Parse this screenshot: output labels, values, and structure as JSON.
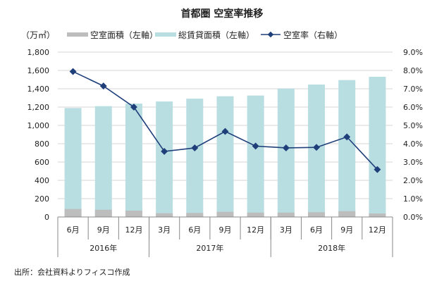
{
  "chart_data": {
    "type": "bar+line",
    "title": "首都圏  空室率推移",
    "y_left_unit": "（万㎡）",
    "ylim_left": [
      0,
      1800
    ],
    "ylim_right": [
      0,
      9
    ],
    "yticks_left": [
      "0",
      "200",
      "400",
      "600",
      "800",
      "1,000",
      "1,200",
      "1,400",
      "1,600",
      "1,800"
    ],
    "yticks_right": [
      "0.0%",
      "1.0%",
      "2.0%",
      "3.0%",
      "4.0%",
      "5.0%",
      "6.0%",
      "7.0%",
      "8.0%",
      "9.0%"
    ],
    "grid": true,
    "legend_position": "top",
    "categories": [
      "6月",
      "9月",
      "12月",
      "3月",
      "6月",
      "9月",
      "12月",
      "3月",
      "6月",
      "9月",
      "12月"
    ],
    "year_groups": [
      {
        "label": "2016年",
        "count": 3
      },
      {
        "label": "2017年",
        "count": 4
      },
      {
        "label": "2018年",
        "count": 4
      }
    ],
    "series": [
      {
        "name": "空室面積（左軸）",
        "type": "bar",
        "axis": "left",
        "color": "#bdbdbd",
        "values": [
          87,
          79,
          69,
          41,
          44,
          56,
          48,
          48,
          52,
          64,
          38
        ]
      },
      {
        "name": "総賃貸面積（左軸）",
        "type": "bar",
        "axis": "left",
        "color": "#b9dee2",
        "values": [
          1190,
          1210,
          1238,
          1261,
          1292,
          1318,
          1326,
          1402,
          1446,
          1495,
          1531
        ]
      },
      {
        "name": "空室率（右軸）",
        "type": "line",
        "axis": "right",
        "color": "#1f3f7a",
        "values": [
          7.94,
          7.15,
          6.0,
          3.58,
          3.77,
          4.67,
          3.87,
          3.77,
          3.8,
          4.37,
          2.59
        ]
      }
    ],
    "source": "出所：会社資料よりフィスコ作成"
  }
}
